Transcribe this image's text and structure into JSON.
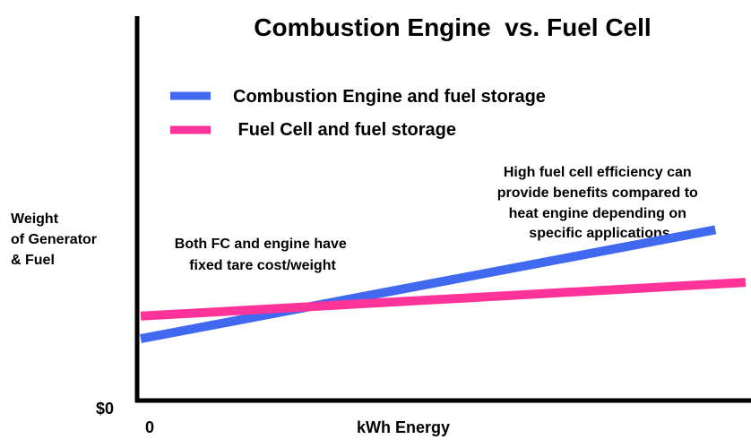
{
  "chart_data": {
    "type": "line",
    "title": "Combustion Engine  vs. Fuel Cell",
    "ylabel_lines": [
      "Weight",
      "of Generator",
      "& Fuel"
    ],
    "xlabel": "kWh Energy",
    "x_tick_label": "0",
    "y_tick_label": "$0",
    "xlim": [
      0,
      100
    ],
    "ylim": [
      0,
      100
    ],
    "grid": false,
    "legend_placement": "top-left",
    "series": [
      {
        "name": "Combustion Engine and fuel storage",
        "color": "#4169f0",
        "x": [
          0,
          95
        ],
        "y": [
          16,
          45
        ]
      },
      {
        "name": " Fuel Cell and fuel storage",
        "color": "#ff3399",
        "x": [
          0,
          100
        ],
        "y": [
          22,
          31
        ]
      }
    ],
    "annotations": [
      {
        "id": "tare",
        "lines": [
          "Both FC and engine have",
          "fixed tare cost/weight"
        ]
      },
      {
        "id": "efficiency",
        "lines": [
          "High fuel cell efficiency can",
          "provide benefits compared to",
          "heat engine depending on",
          "specific applications"
        ]
      }
    ]
  }
}
